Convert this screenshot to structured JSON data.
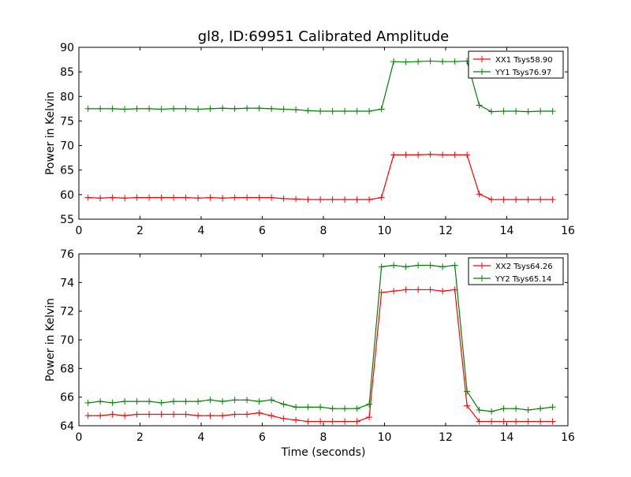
{
  "chart_data": [
    {
      "type": "line",
      "title": "gl8, ID:69951 Calibrated Amplitude",
      "xlabel": "",
      "ylabel": "Power in Kelvin",
      "xlim": [
        0,
        16
      ],
      "ylim": [
        55,
        90
      ],
      "xticks": [
        0,
        2,
        4,
        6,
        8,
        10,
        12,
        14,
        16
      ],
      "yticks": [
        55,
        60,
        65,
        70,
        75,
        80,
        85,
        90
      ],
      "grid": false,
      "legend_position": "top-right",
      "x": [
        0.3,
        0.7,
        1.1,
        1.5,
        1.9,
        2.3,
        2.7,
        3.1,
        3.5,
        3.9,
        4.3,
        4.7,
        5.1,
        5.5,
        5.9,
        6.3,
        6.7,
        7.1,
        7.5,
        7.9,
        8.3,
        8.7,
        9.1,
        9.5,
        9.9,
        10.3,
        10.7,
        11.1,
        11.5,
        11.9,
        12.3,
        12.7,
        13.1,
        13.5,
        13.9,
        14.3,
        14.7,
        15.1,
        15.5
      ],
      "series": [
        {
          "name": "XX1 Tsys58.90",
          "color": "#ff0000",
          "values": [
            59.4,
            59.3,
            59.4,
            59.3,
            59.4,
            59.4,
            59.4,
            59.4,
            59.4,
            59.3,
            59.4,
            59.3,
            59.4,
            59.4,
            59.4,
            59.4,
            59.2,
            59.1,
            59.0,
            59.0,
            59.0,
            59.0,
            59.0,
            59.0,
            59.4,
            68.1,
            68.1,
            68.1,
            68.2,
            68.1,
            68.1,
            68.1,
            60.1,
            59.0,
            59.0,
            59.0,
            59.0,
            59.0,
            59.0
          ]
        },
        {
          "name": "YY1 Tsys76.97",
          "color": "#008000",
          "values": [
            77.5,
            77.5,
            77.5,
            77.4,
            77.5,
            77.5,
            77.4,
            77.5,
            77.5,
            77.4,
            77.5,
            77.6,
            77.5,
            77.6,
            77.6,
            77.5,
            77.4,
            77.3,
            77.1,
            77.0,
            77.0,
            77.0,
            77.0,
            77.0,
            77.4,
            87.1,
            87.0,
            87.1,
            87.2,
            87.1,
            87.1,
            87.2,
            78.2,
            76.9,
            77.0,
            77.0,
            76.9,
            77.0,
            77.0
          ]
        }
      ]
    },
    {
      "type": "line",
      "title": "",
      "xlabel": "Time (seconds)",
      "ylabel": "Power in Kelvin",
      "xlim": [
        0,
        16
      ],
      "ylim": [
        64,
        76
      ],
      "xticks": [
        0,
        2,
        4,
        6,
        8,
        10,
        12,
        14,
        16
      ],
      "yticks": [
        64,
        66,
        68,
        70,
        72,
        74,
        76
      ],
      "grid": false,
      "legend_position": "top-right",
      "x": [
        0.3,
        0.7,
        1.1,
        1.5,
        1.9,
        2.3,
        2.7,
        3.1,
        3.5,
        3.9,
        4.3,
        4.7,
        5.1,
        5.5,
        5.9,
        6.3,
        6.7,
        7.1,
        7.5,
        7.9,
        8.3,
        8.7,
        9.1,
        9.5,
        9.9,
        10.3,
        10.7,
        11.1,
        11.5,
        11.9,
        12.3,
        12.7,
        13.1,
        13.5,
        13.9,
        14.3,
        14.7,
        15.1,
        15.5
      ],
      "series": [
        {
          "name": "XX2 Tsys64.26",
          "color": "#ff0000",
          "values": [
            64.7,
            64.7,
            64.8,
            64.7,
            64.8,
            64.8,
            64.8,
            64.8,
            64.8,
            64.7,
            64.7,
            64.7,
            64.8,
            64.8,
            64.9,
            64.7,
            64.5,
            64.4,
            64.3,
            64.3,
            64.3,
            64.3,
            64.3,
            64.6,
            73.3,
            73.4,
            73.5,
            73.5,
            73.5,
            73.4,
            73.5,
            65.4,
            64.3,
            64.3,
            64.3,
            64.3,
            64.3,
            64.3,
            64.3
          ]
        },
        {
          "name": "YY2 Tsys65.14",
          "color": "#008000",
          "values": [
            65.6,
            65.7,
            65.6,
            65.7,
            65.7,
            65.7,
            65.6,
            65.7,
            65.7,
            65.7,
            65.8,
            65.7,
            65.8,
            65.8,
            65.7,
            65.8,
            65.5,
            65.3,
            65.3,
            65.3,
            65.2,
            65.2,
            65.2,
            65.5,
            75.1,
            75.2,
            75.1,
            75.2,
            75.2,
            75.1,
            75.2,
            66.4,
            65.1,
            65.0,
            65.2,
            65.2,
            65.1,
            65.2,
            65.3
          ]
        }
      ]
    }
  ]
}
